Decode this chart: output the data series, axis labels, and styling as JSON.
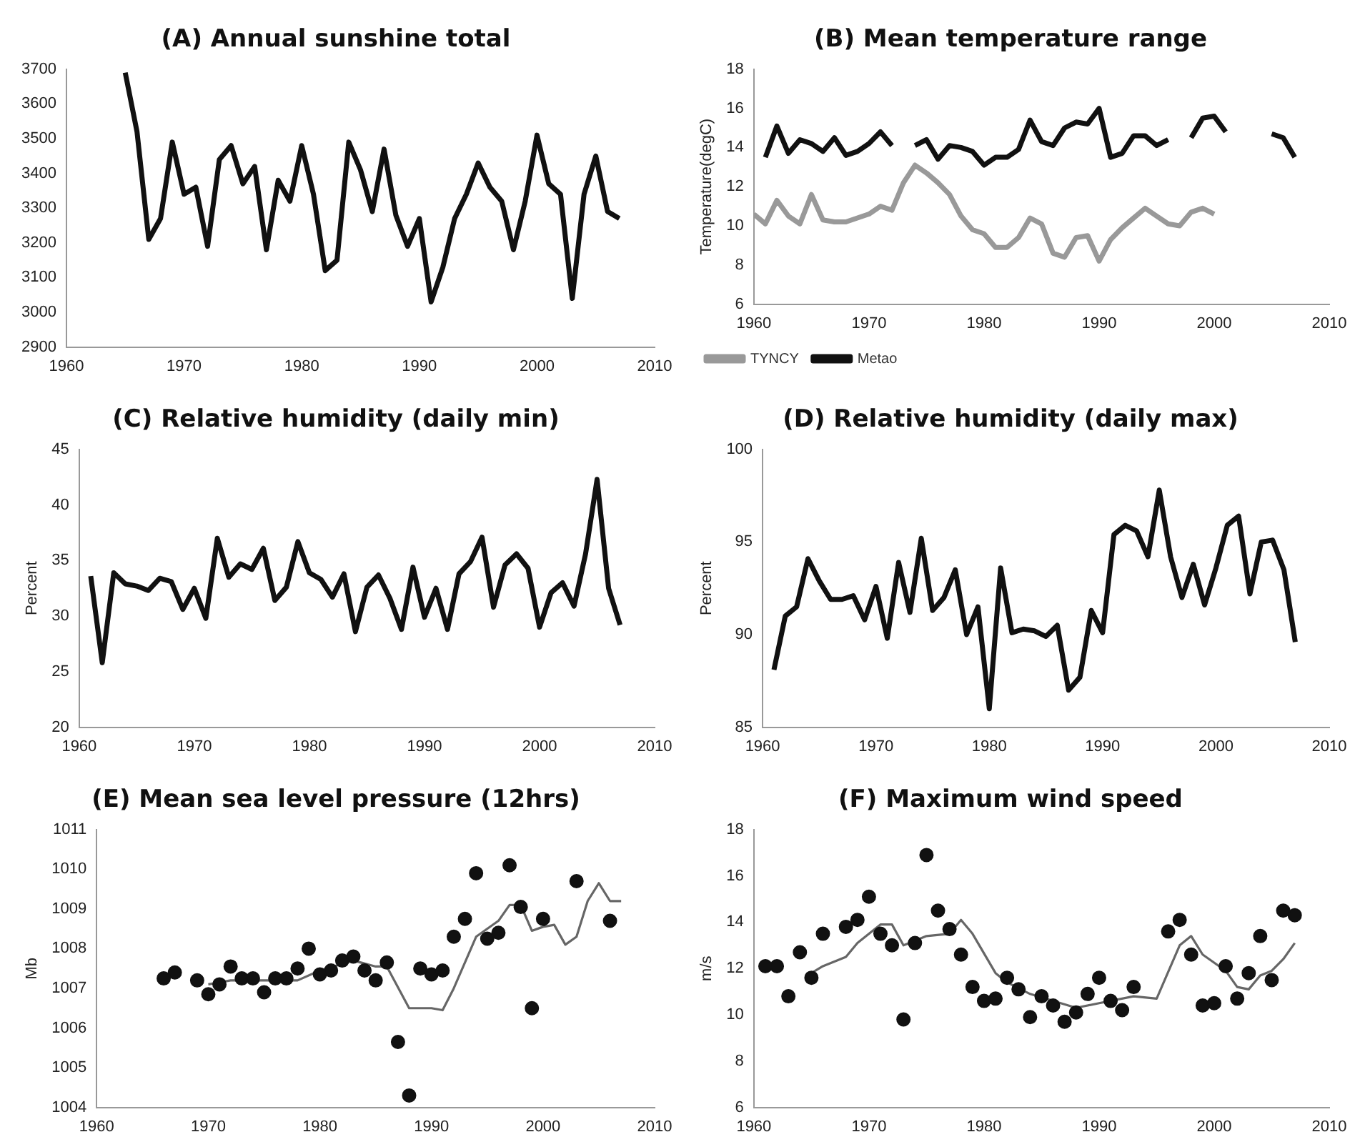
{
  "chart_data": [
    {
      "type": "line",
      "title": "(A) Annual sunshine total",
      "xlim": [
        1960,
        2010
      ],
      "xticks": [
        1960,
        1970,
        1980,
        1990,
        2000,
        2010
      ],
      "ylim": [
        2900,
        3700
      ],
      "yticks": [
        2900,
        3000,
        3100,
        3200,
        3300,
        3400,
        3500,
        3600,
        3700
      ],
      "grid": false,
      "series": [
        {
          "color": "#111111",
          "x": [
            1965,
            1966,
            1967,
            1968,
            1969,
            1970,
            1971,
            1972,
            1973,
            1974,
            1975,
            1976,
            1977,
            1978,
            1979,
            1980,
            1981,
            1982,
            1983,
            1984,
            1985,
            1986,
            1987,
            1988,
            1989,
            1990,
            1991,
            1992,
            1993,
            1994,
            1995,
            1996,
            1997,
            1998,
            1999,
            2000,
            2001,
            2002,
            2003,
            2004,
            2005,
            2006,
            2007
          ],
          "values": [
            3690,
            3520,
            3210,
            3270,
            3490,
            3340,
            3360,
            3190,
            3440,
            3480,
            3370,
            3420,
            3180,
            3380,
            3320,
            3480,
            3340,
            3120,
            3150,
            3490,
            3410,
            3290,
            3470,
            3280,
            3190,
            3270,
            3030,
            3130,
            3270,
            3340,
            3430,
            3360,
            3320,
            3180,
            3320,
            3510,
            3370,
            3340,
            3040,
            3340,
            3450,
            3290,
            3270
          ]
        }
      ]
    },
    {
      "type": "line",
      "title": "(B) Mean temperature range",
      "ylabel": "Temperature(degC)",
      "xlim": [
        1960,
        2010
      ],
      "xticks": [
        1960,
        1970,
        1980,
        1990,
        2000,
        2010
      ],
      "ylim": [
        6,
        18
      ],
      "yticks": [
        6,
        8,
        10,
        12,
        14,
        16,
        18
      ],
      "grid": false,
      "legend": "bottom left",
      "series": [
        {
          "name": "TYNCY",
          "color": "#999999",
          "x": [
            1960,
            1961,
            1962,
            1963,
            1964,
            1965,
            1966,
            1967,
            1968,
            1969,
            1970,
            1971,
            1972,
            1973,
            1974,
            1975,
            1976,
            1977,
            1978,
            1979,
            1980,
            1981,
            1982,
            1983,
            1984,
            1985,
            1986,
            1987,
            1988,
            1989,
            1990,
            1991,
            1992,
            1993,
            1994,
            1995,
            1996,
            1997,
            1998,
            1999,
            2000
          ],
          "values": [
            10.6,
            10.1,
            11.3,
            10.5,
            10.1,
            11.6,
            10.3,
            10.2,
            10.2,
            10.4,
            10.6,
            11.0,
            10.8,
            12.2,
            13.1,
            12.7,
            12.2,
            11.6,
            10.5,
            9.8,
            9.6,
            8.9,
            8.9,
            9.4,
            10.4,
            10.1,
            8.6,
            8.4,
            9.4,
            9.5,
            8.2,
            9.3,
            9.9,
            10.4,
            10.9,
            10.5,
            10.1,
            10.0,
            10.7,
            10.9,
            10.6
          ]
        },
        {
          "name": "Metao",
          "color": "#111111",
          "x": [
            1961,
            1962,
            1963,
            1964,
            1965,
            1966,
            1967,
            1968,
            1969,
            1970,
            1971,
            1972,
            1973,
            1974,
            1975,
            1976,
            1977,
            1978,
            1979,
            1980,
            1981,
            1982,
            1983,
            1984,
            1985,
            1986,
            1987,
            1988,
            1989,
            1990,
            1991,
            1992,
            1993,
            1994,
            1995,
            1996,
            1997,
            1998,
            1999,
            2000,
            2001,
            2002,
            2003,
            2004,
            2005,
            2006,
            2007
          ],
          "values": [
            13.5,
            15.1,
            13.7,
            14.4,
            14.2,
            13.8,
            14.5,
            13.6,
            13.8,
            14.2,
            14.8,
            14.1,
            null,
            14.1,
            14.4,
            13.4,
            14.1,
            14.0,
            13.8,
            13.1,
            13.5,
            13.5,
            13.9,
            15.4,
            14.3,
            14.1,
            15.0,
            15.3,
            15.2,
            16.0,
            13.5,
            13.7,
            14.6,
            14.6,
            14.1,
            14.4,
            null,
            14.5,
            15.5,
            15.6,
            14.8,
            null,
            null,
            null,
            14.7,
            14.5,
            13.5
          ]
        }
      ]
    },
    {
      "type": "line",
      "title": "(C) Relative humidity (daily min)",
      "ylabel": "Percent",
      "xlim": [
        1960,
        2010
      ],
      "xticks": [
        1960,
        1970,
        1980,
        1990,
        2000,
        2010
      ],
      "ylim": [
        20,
        45
      ],
      "yticks": [
        20,
        25,
        30,
        35,
        40,
        45
      ],
      "grid": false,
      "series": [
        {
          "color": "#111111",
          "x": [
            1961,
            1962,
            1963,
            1964,
            1965,
            1966,
            1967,
            1968,
            1969,
            1970,
            1971,
            1972,
            1973,
            1974,
            1975,
            1976,
            1977,
            1978,
            1979,
            1980,
            1981,
            1982,
            1983,
            1984,
            1985,
            1986,
            1987,
            1988,
            1989,
            1990,
            1991,
            1992,
            1993,
            1994,
            1995,
            1996,
            1997,
            1998,
            1999,
            2000,
            2001,
            2002,
            2003,
            2004,
            2005,
            2006,
            2007
          ],
          "values": [
            33.6,
            25.8,
            33.9,
            32.9,
            32.7,
            32.3,
            33.4,
            33.1,
            30.6,
            32.5,
            29.8,
            37.0,
            33.5,
            34.7,
            34.2,
            36.1,
            31.4,
            32.6,
            36.7,
            33.9,
            33.3,
            31.7,
            33.8,
            28.6,
            32.6,
            33.7,
            31.6,
            28.8,
            34.4,
            29.9,
            32.5,
            28.8,
            33.8,
            34.9,
            37.1,
            30.8,
            34.6,
            35.6,
            34.3,
            29.0,
            32.1,
            33.0,
            30.9,
            35.6,
            42.3,
            32.5,
            29.2
          ]
        }
      ]
    },
    {
      "type": "line",
      "title": "(D) Relative humidity (daily max)",
      "ylabel": "Percent",
      "xlim": [
        1960,
        2010
      ],
      "xticks": [
        1960,
        1970,
        1980,
        1990,
        2000,
        2010
      ],
      "ylim": [
        85,
        100
      ],
      "yticks": [
        85,
        90,
        95,
        100
      ],
      "grid": false,
      "series": [
        {
          "color": "#111111",
          "x": [
            1961,
            1962,
            1963,
            1964,
            1965,
            1966,
            1967,
            1968,
            1969,
            1970,
            1971,
            1972,
            1973,
            1974,
            1975,
            1976,
            1977,
            1978,
            1979,
            1980,
            1981,
            1982,
            1983,
            1984,
            1985,
            1986,
            1987,
            1988,
            1989,
            1990,
            1991,
            1992,
            1993,
            1994,
            1995,
            1996,
            1997,
            1998,
            1999,
            2000,
            2001,
            2002,
            2003,
            2004,
            2005,
            2006,
            2007
          ],
          "values": [
            88.1,
            91.0,
            91.5,
            94.1,
            92.9,
            91.9,
            91.9,
            92.1,
            90.8,
            92.6,
            89.8,
            93.9,
            91.2,
            95.2,
            91.3,
            92.0,
            93.5,
            90.0,
            91.5,
            86.0,
            93.6,
            90.1,
            90.3,
            90.2,
            89.9,
            90.5,
            87.0,
            87.7,
            91.3,
            90.1,
            95.4,
            95.9,
            95.6,
            94.2,
            97.8,
            94.2,
            92.0,
            93.8,
            91.6,
            93.6,
            95.9,
            96.4,
            92.2,
            95.0,
            95.1,
            93.5,
            89.6
          ]
        }
      ]
    },
    {
      "type": "line",
      "title": "(E) Mean sea level pressure (12hrs)",
      "ylabel": "Mb",
      "xlim": [
        1960,
        2010
      ],
      "xticks": [
        1960,
        1970,
        1980,
        1990,
        2000,
        2010
      ],
      "ylim": [
        1004,
        1011
      ],
      "yticks": [
        1004,
        1005,
        1006,
        1007,
        1008,
        1009,
        1010,
        1011
      ],
      "grid": false,
      "series": [
        {
          "type": "scatter",
          "marker": "circle",
          "color": "#111111",
          "x": [
            1966,
            1967,
            1969,
            1970,
            1971,
            1972,
            1973,
            1974,
            1975,
            1976,
            1977,
            1978,
            1979,
            1980,
            1981,
            1982,
            1983,
            1984,
            1985,
            1986,
            1987,
            1988,
            1989,
            1990,
            1991,
            1992,
            1993,
            1994,
            1995,
            1996,
            1997,
            1998,
            1999,
            2000,
            2003,
            2006
          ],
          "values": [
            1007.25,
            1007.4,
            1007.2,
            1006.85,
            1007.1,
            1007.55,
            1007.25,
            1007.25,
            1006.9,
            1007.25,
            1007.25,
            1007.5,
            1008.0,
            1007.35,
            1007.45,
            1007.7,
            1007.8,
            1007.45,
            1007.2,
            1007.65,
            1005.65,
            1004.3,
            1007.5,
            1007.35,
            1007.45,
            1008.3,
            1008.75,
            1009.9,
            1008.25,
            1008.4,
            1010.1,
            1009.05,
            1006.5,
            1008.75,
            1009.7,
            1008.7
          ]
        },
        {
          "color": "#666666",
          "x": [
            1970,
            1972,
            1975,
            1978,
            1980,
            1983,
            1985,
            1986,
            1988,
            1990,
            1991,
            1992,
            1994,
            1996,
            1997,
            1998,
            1999,
            2000,
            2001,
            2002,
            2003,
            2004,
            2005,
            2006,
            2007
          ],
          "values": [
            1007.1,
            1007.2,
            1007.2,
            1007.2,
            1007.45,
            1007.7,
            1007.55,
            1007.55,
            1006.5,
            1006.5,
            1006.45,
            1007.0,
            1008.3,
            1008.7,
            1009.1,
            1009.1,
            1008.45,
            1008.55,
            1008.6,
            1008.1,
            1008.3,
            1009.2,
            1009.65,
            1009.2,
            1009.2
          ]
        }
      ]
    },
    {
      "type": "line",
      "title": "(F) Maximum wind speed",
      "ylabel": "m/s",
      "xlim": [
        1960,
        2010
      ],
      "xticks": [
        1960,
        1970,
        1980,
        1990,
        2000,
        2010
      ],
      "ylim": [
        6,
        18
      ],
      "yticks": [
        6,
        8,
        10,
        12,
        14,
        16,
        18
      ],
      "grid": false,
      "series": [
        {
          "type": "scatter",
          "marker": "circle",
          "color": "#111111",
          "x": [
            1961,
            1962,
            1963,
            1964,
            1965,
            1966,
            1968,
            1969,
            1970,
            1971,
            1972,
            1973,
            1974,
            1975,
            1976,
            1977,
            1978,
            1979,
            1980,
            1981,
            1982,
            1983,
            1984,
            1985,
            1986,
            1987,
            1988,
            1989,
            1990,
            1991,
            1992,
            1993,
            1996,
            1997,
            1998,
            1999,
            2000,
            2001,
            2002,
            2003,
            2004,
            2005,
            2006,
            2007
          ],
          "values": [
            12.1,
            12.1,
            10.8,
            12.7,
            11.6,
            13.5,
            13.8,
            14.1,
            15.1,
            13.5,
            13.0,
            9.8,
            13.1,
            16.9,
            14.5,
            13.7,
            12.6,
            11.2,
            10.6,
            10.7,
            11.6,
            11.1,
            9.9,
            10.8,
            10.4,
            9.7,
            10.1,
            10.9,
            11.6,
            10.6,
            10.2,
            11.2,
            13.6,
            14.1,
            12.6,
            10.4,
            10.5,
            12.1,
            10.7,
            11.8,
            13.4,
            11.5,
            14.5,
            14.3
          ]
        },
        {
          "color": "#666666",
          "x": [
            1965,
            1966,
            1968,
            1969,
            1971,
            1972,
            1973,
            1975,
            1977,
            1978,
            1979,
            1981,
            1982,
            1984,
            1986,
            1988,
            1990,
            1993,
            1995,
            1997,
            1998,
            1999,
            2001,
            2002,
            2003,
            2004,
            2005,
            2006,
            2007
          ],
          "values": [
            11.8,
            12.1,
            12.5,
            13.1,
            13.9,
            13.9,
            13.0,
            13.4,
            13.5,
            14.1,
            13.5,
            11.8,
            11.4,
            10.9,
            10.6,
            10.3,
            10.5,
            10.8,
            10.7,
            13.0,
            13.4,
            12.6,
            11.9,
            11.2,
            11.1,
            11.7,
            11.9,
            12.4,
            13.1
          ]
        }
      ]
    }
  ]
}
